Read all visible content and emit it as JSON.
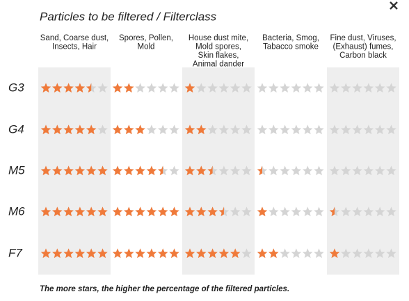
{
  "title": "Particles to be filtered / Filterclass",
  "columns": [
    [
      "Sand, Coarse dust,",
      "Insects, Hair"
    ],
    [
      "Spores, Pollen,",
      "Mold"
    ],
    [
      "House dust mite,",
      "Mold spores,",
      "Skin flakes,",
      "Animal dander"
    ],
    [
      "Bacteria, Smog,",
      "Tabacco smoke"
    ],
    [
      "Fine dust, Viruses,",
      "(Exhaust) fumes,",
      "Carbon black"
    ]
  ],
  "rows": [
    {
      "label": "G3",
      "ratings": [
        4.5,
        2,
        1,
        0,
        0
      ]
    },
    {
      "label": "G4",
      "ratings": [
        5,
        3,
        2,
        0,
        0
      ]
    },
    {
      "label": "M5",
      "ratings": [
        6,
        4.5,
        2.5,
        0.5,
        0
      ]
    },
    {
      "label": "M6",
      "ratings": [
        6,
        6,
        3.5,
        1,
        0.5
      ]
    },
    {
      "label": "F7",
      "ratings": [
        6,
        6,
        5,
        2,
        1
      ]
    }
  ],
  "scale_max": 6,
  "filled_color": "#f07a3a",
  "empty_color": "#d4d4d4",
  "footer": "The more stars, the higher the percentage of the filtered particles."
}
